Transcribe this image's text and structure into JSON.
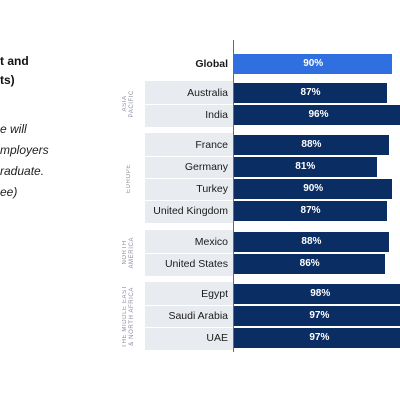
{
  "left_text": {
    "title": "t and\nts)",
    "subtitle": "e will\nmployers\nraduate.\nee)"
  },
  "colors": {
    "global_bar": "#2f6fe0",
    "region_bar": "#0a2d63",
    "band_bg": "#e8ebf0",
    "axis_line": "#2f6fe0"
  },
  "chart_data": {
    "type": "bar",
    "orientation": "horizontal",
    "categories": [
      "Global",
      "Australia",
      "India",
      "France",
      "Germany",
      "Turkey",
      "United Kingdom",
      "Mexico",
      "United States",
      "Egypt",
      "Saudi Arabia",
      "UAE"
    ],
    "values": [
      90,
      87,
      96,
      88,
      81,
      90,
      87,
      88,
      86,
      98,
      97,
      97
    ],
    "value_labels": [
      "90%",
      "87%",
      "96%",
      "88%",
      "81%",
      "90%",
      "87%",
      "88%",
      "86%",
      "98%",
      "97%",
      "97%"
    ],
    "groups": [
      {
        "name": "",
        "categories": [
          "Global"
        ]
      },
      {
        "name": "ASIA\nPACIFIC",
        "categories": [
          "Australia",
          "India"
        ]
      },
      {
        "name": "EUROPE",
        "categories": [
          "France",
          "Germany",
          "Turkey",
          "United Kingdom"
        ]
      },
      {
        "name": "NORTH\nAMERICA",
        "categories": [
          "Mexico",
          "United States"
        ]
      },
      {
        "name": "THE MIDDLE EAST\n& NORTH AFRICA",
        "categories": [
          "Egypt",
          "Saudi Arabia",
          "UAE"
        ]
      }
    ],
    "xlim": [
      0,
      100
    ],
    "title": "",
    "xlabel": "",
    "ylabel": ""
  }
}
